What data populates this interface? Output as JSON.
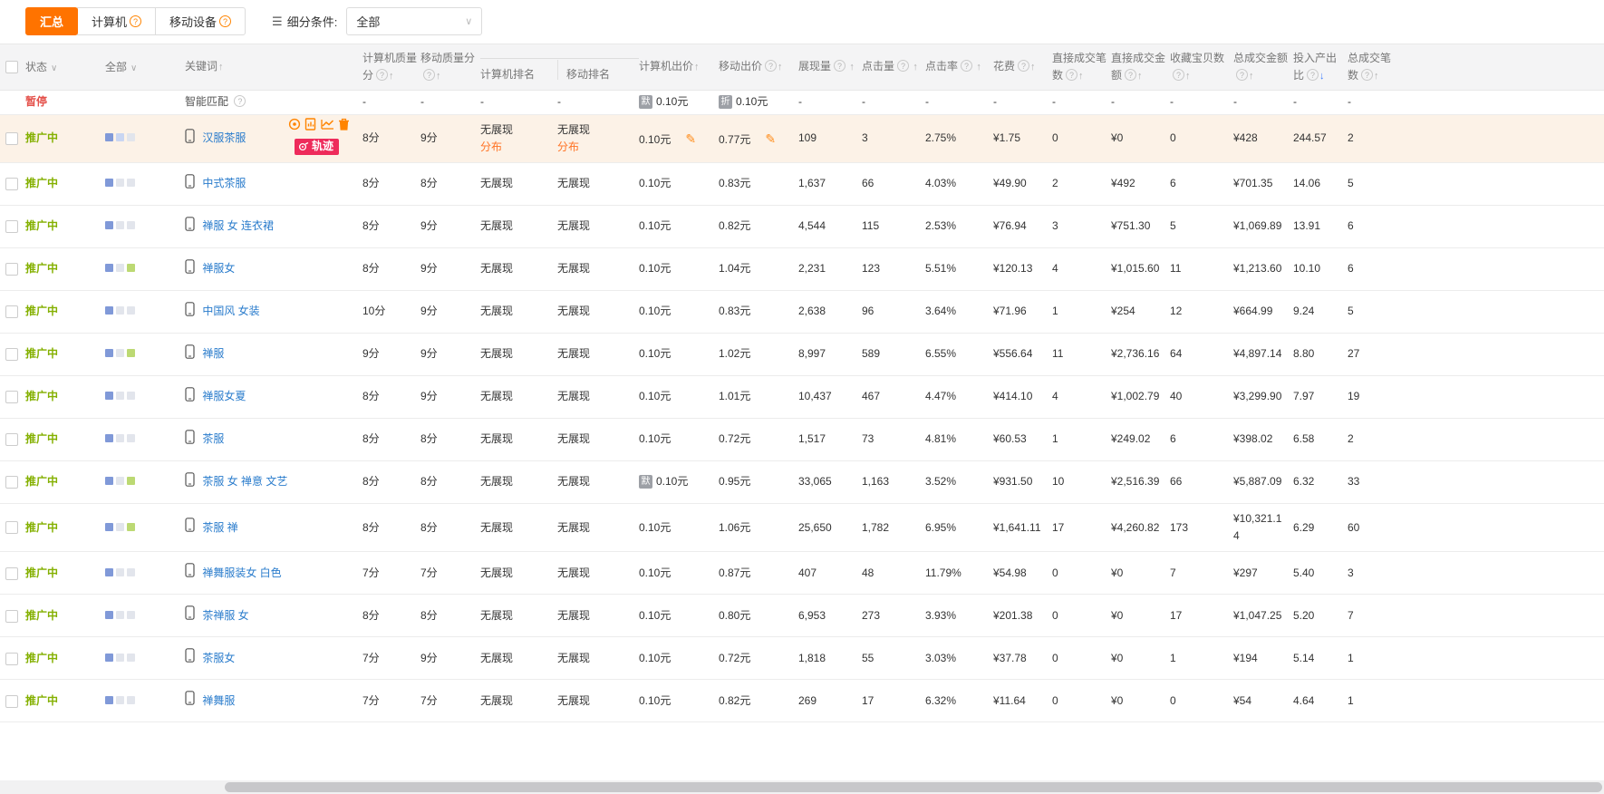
{
  "toolbar": {
    "tab_summary": "汇总",
    "tab_computer": "计算机",
    "tab_mobile": "移动设备",
    "filter_label": "细分条件:",
    "filter_value": "全部"
  },
  "header": {
    "status": "状态",
    "all": "全部",
    "keyword": "关键词",
    "computer_quality": "计算机质量分",
    "mobile_quality": "移动质量分",
    "computer_rank": "计算机排名",
    "mobile_rank": "移动排名",
    "computer_bid": "计算机出价",
    "mobile_bid": "移动出价",
    "impressions": "展现量",
    "clicks": "点击量",
    "ctr": "点击率",
    "cost": "花费",
    "direct_orders": "直接成交笔数",
    "direct_amount": "直接成交金额",
    "favorites": "收藏宝贝数",
    "total_amount": "总成交金额",
    "roi": "投入产出比",
    "total_orders": "总成交笔数"
  },
  "icons": {
    "filter": "☰",
    "chevron": "∨",
    "help": "?",
    "sort_up": "↑",
    "sort_down": "↓",
    "edit": "✎"
  },
  "badges": {
    "track": "轨迹"
  },
  "misc": {
    "distribution": "分布"
  },
  "colors": {
    "accent": "#ff7300",
    "paused": "#e4504a",
    "active": "#84b000",
    "link": "#2a7ccc",
    "highlight_row": "#fcf2e7",
    "track_badge": "#ee2b5b",
    "indicator_blue": "#8099d8",
    "indicator_lightblue": "#c9d6f2",
    "indicator_gray": "#e2e5ec",
    "indicator_green": "#bcd973"
  },
  "rows": [
    {
      "status": "暂停",
      "state": "paused",
      "keyword": "智能匹配",
      "smart": true,
      "cscore": "-",
      "mscore": "-",
      "crank": "-",
      "mrank": "-",
      "cbid": "0.10元",
      "cbid_badge": "默",
      "mbid": "0.10元",
      "mbid_badge": "折",
      "imp": "-",
      "clicks": "-",
      "ctr": "-",
      "cost": "-",
      "dcount": "-",
      "damount": "-",
      "fav": "-",
      "tamount": "-",
      "roi": "-",
      "tcount": "-"
    },
    {
      "status": "推广中",
      "state": "active",
      "checkbox": true,
      "indicator": [
        "blue",
        "lightblue",
        "gray"
      ],
      "keyword": "汉服茶服",
      "cscore": "8分",
      "mscore": "9分",
      "crank": "无展现",
      "mrank": "无展现",
      "rank_link": true,
      "cbid": "0.10元",
      "mbid": "0.77元",
      "bid_edit": true,
      "imp": "109",
      "clicks": "3",
      "ctr": "2.75%",
      "cost": "¥1.75",
      "dcount": "0",
      "damount": "¥0",
      "fav": "0",
      "tamount": "¥428",
      "roi": "244.57",
      "tcount": "2",
      "highlight": true,
      "hover_icons": true
    },
    {
      "status": "推广中",
      "state": "active",
      "checkbox": true,
      "indicator": [
        "blue",
        "gray",
        "gray"
      ],
      "keyword": "中式茶服",
      "cscore": "8分",
      "mscore": "8分",
      "crank": "无展现",
      "mrank": "无展现",
      "cbid": "0.10元",
      "mbid": "0.83元",
      "imp": "1,637",
      "clicks": "66",
      "ctr": "4.03%",
      "cost": "¥49.90",
      "dcount": "2",
      "damount": "¥492",
      "fav": "6",
      "tamount": "¥701.35",
      "roi": "14.06",
      "tcount": "5"
    },
    {
      "status": "推广中",
      "state": "active",
      "checkbox": true,
      "indicator": [
        "blue",
        "gray",
        "gray"
      ],
      "keyword": "禅服 女 连衣裙",
      "cscore": "8分",
      "mscore": "9分",
      "crank": "无展现",
      "mrank": "无展现",
      "cbid": "0.10元",
      "mbid": "0.82元",
      "imp": "4,544",
      "clicks": "115",
      "ctr": "2.53%",
      "cost": "¥76.94",
      "dcount": "3",
      "damount": "¥751.30",
      "fav": "5",
      "tamount": "¥1,069.89",
      "roi": "13.91",
      "tcount": "6"
    },
    {
      "status": "推广中",
      "state": "active",
      "checkbox": true,
      "indicator": [
        "blue",
        "gray",
        "green"
      ],
      "keyword": "禅服女",
      "cscore": "8分",
      "mscore": "9分",
      "crank": "无展现",
      "mrank": "无展现",
      "cbid": "0.10元",
      "mbid": "1.04元",
      "imp": "2,231",
      "clicks": "123",
      "ctr": "5.51%",
      "cost": "¥120.13",
      "dcount": "4",
      "damount": "¥1,015.60",
      "fav": "11",
      "tamount": "¥1,213.60",
      "roi": "10.10",
      "tcount": "6"
    },
    {
      "status": "推广中",
      "state": "active",
      "checkbox": true,
      "indicator": [
        "blue",
        "gray",
        "gray"
      ],
      "keyword": "中国风 女装",
      "cscore": "10分",
      "mscore": "9分",
      "crank": "无展现",
      "mrank": "无展现",
      "cbid": "0.10元",
      "mbid": "0.83元",
      "imp": "2,638",
      "clicks": "96",
      "ctr": "3.64%",
      "cost": "¥71.96",
      "dcount": "1",
      "damount": "¥254",
      "fav": "12",
      "tamount": "¥664.99",
      "roi": "9.24",
      "tcount": "5"
    },
    {
      "status": "推广中",
      "state": "active",
      "checkbox": true,
      "indicator": [
        "blue",
        "gray",
        "green"
      ],
      "keyword": "禅服",
      "cscore": "9分",
      "mscore": "9分",
      "crank": "无展现",
      "mrank": "无展现",
      "cbid": "0.10元",
      "mbid": "1.02元",
      "imp": "8,997",
      "clicks": "589",
      "ctr": "6.55%",
      "cost": "¥556.64",
      "dcount": "11",
      "damount": "¥2,736.16",
      "fav": "64",
      "tamount": "¥4,897.14",
      "roi": "8.80",
      "tcount": "27"
    },
    {
      "status": "推广中",
      "state": "active",
      "checkbox": true,
      "indicator": [
        "blue",
        "gray",
        "gray"
      ],
      "keyword": "禅服女夏",
      "cscore": "8分",
      "mscore": "9分",
      "crank": "无展现",
      "mrank": "无展现",
      "cbid": "0.10元",
      "mbid": "1.01元",
      "imp": "10,437",
      "clicks": "467",
      "ctr": "4.47%",
      "cost": "¥414.10",
      "dcount": "4",
      "damount": "¥1,002.79",
      "fav": "40",
      "tamount": "¥3,299.90",
      "roi": "7.97",
      "tcount": "19"
    },
    {
      "status": "推广中",
      "state": "active",
      "checkbox": true,
      "indicator": [
        "blue",
        "gray",
        "gray"
      ],
      "keyword": "茶服",
      "cscore": "8分",
      "mscore": "8分",
      "crank": "无展现",
      "mrank": "无展现",
      "cbid": "0.10元",
      "mbid": "0.72元",
      "imp": "1,517",
      "clicks": "73",
      "ctr": "4.81%",
      "cost": "¥60.53",
      "dcount": "1",
      "damount": "¥249.02",
      "fav": "6",
      "tamount": "¥398.02",
      "roi": "6.58",
      "tcount": "2"
    },
    {
      "status": "推广中",
      "state": "active",
      "checkbox": true,
      "indicator": [
        "blue",
        "gray",
        "green"
      ],
      "keyword": "茶服 女 禅意 文艺",
      "cscore": "8分",
      "mscore": "8分",
      "crank": "无展现",
      "mrank": "无展现",
      "cbid": "0.10元",
      "cbid_badge": "默",
      "mbid": "0.95元",
      "imp": "33,065",
      "clicks": "1,163",
      "ctr": "3.52%",
      "cost": "¥931.50",
      "dcount": "10",
      "damount": "¥2,516.39",
      "fav": "66",
      "tamount": "¥5,887.09",
      "roi": "6.32",
      "tcount": "33"
    },
    {
      "status": "推广中",
      "state": "active",
      "checkbox": true,
      "indicator": [
        "blue",
        "gray",
        "green"
      ],
      "keyword": "茶服 禅",
      "cscore": "8分",
      "mscore": "8分",
      "crank": "无展现",
      "mrank": "无展现",
      "cbid": "0.10元",
      "mbid": "1.06元",
      "imp": "25,650",
      "clicks": "1,782",
      "ctr": "6.95%",
      "cost": "¥1,641.11",
      "dcount": "17",
      "damount": "¥4,260.82",
      "fav": "173",
      "tamount": "¥10,321.14",
      "roi": "6.29",
      "tcount": "60"
    },
    {
      "status": "推广中",
      "state": "active",
      "checkbox": true,
      "indicator": [
        "blue",
        "gray",
        "gray"
      ],
      "keyword": "禅舞服装女 白色",
      "cscore": "7分",
      "mscore": "7分",
      "crank": "无展现",
      "mrank": "无展现",
      "cbid": "0.10元",
      "mbid": "0.87元",
      "imp": "407",
      "clicks": "48",
      "ctr": "11.79%",
      "cost": "¥54.98",
      "dcount": "0",
      "damount": "¥0",
      "fav": "7",
      "tamount": "¥297",
      "roi": "5.40",
      "tcount": "3"
    },
    {
      "status": "推广中",
      "state": "active",
      "checkbox": true,
      "indicator": [
        "blue",
        "gray",
        "gray"
      ],
      "keyword": "茶禅服 女",
      "cscore": "8分",
      "mscore": "8分",
      "crank": "无展现",
      "mrank": "无展现",
      "cbid": "0.10元",
      "mbid": "0.80元",
      "imp": "6,953",
      "clicks": "273",
      "ctr": "3.93%",
      "cost": "¥201.38",
      "dcount": "0",
      "damount": "¥0",
      "fav": "17",
      "tamount": "¥1,047.25",
      "roi": "5.20",
      "tcount": "7"
    },
    {
      "status": "推广中",
      "state": "active",
      "checkbox": true,
      "indicator": [
        "blue",
        "gray",
        "gray"
      ],
      "keyword": "茶服女",
      "cscore": "7分",
      "mscore": "9分",
      "crank": "无展现",
      "mrank": "无展现",
      "cbid": "0.10元",
      "mbid": "0.72元",
      "imp": "1,818",
      "clicks": "55",
      "ctr": "3.03%",
      "cost": "¥37.78",
      "dcount": "0",
      "damount": "¥0",
      "fav": "1",
      "tamount": "¥194",
      "roi": "5.14",
      "tcount": "1"
    },
    {
      "status": "推广中",
      "state": "active",
      "checkbox": true,
      "indicator": [
        "blue",
        "gray",
        "gray"
      ],
      "keyword": "禅舞服",
      "cscore": "7分",
      "mscore": "7分",
      "crank": "无展现",
      "mrank": "无展现",
      "cbid": "0.10元",
      "mbid": "0.82元",
      "imp": "269",
      "clicks": "17",
      "ctr": "6.32%",
      "cost": "¥11.64",
      "dcount": "0",
      "damount": "¥0",
      "fav": "0",
      "tamount": "¥54",
      "roi": "4.64",
      "tcount": "1"
    }
  ]
}
